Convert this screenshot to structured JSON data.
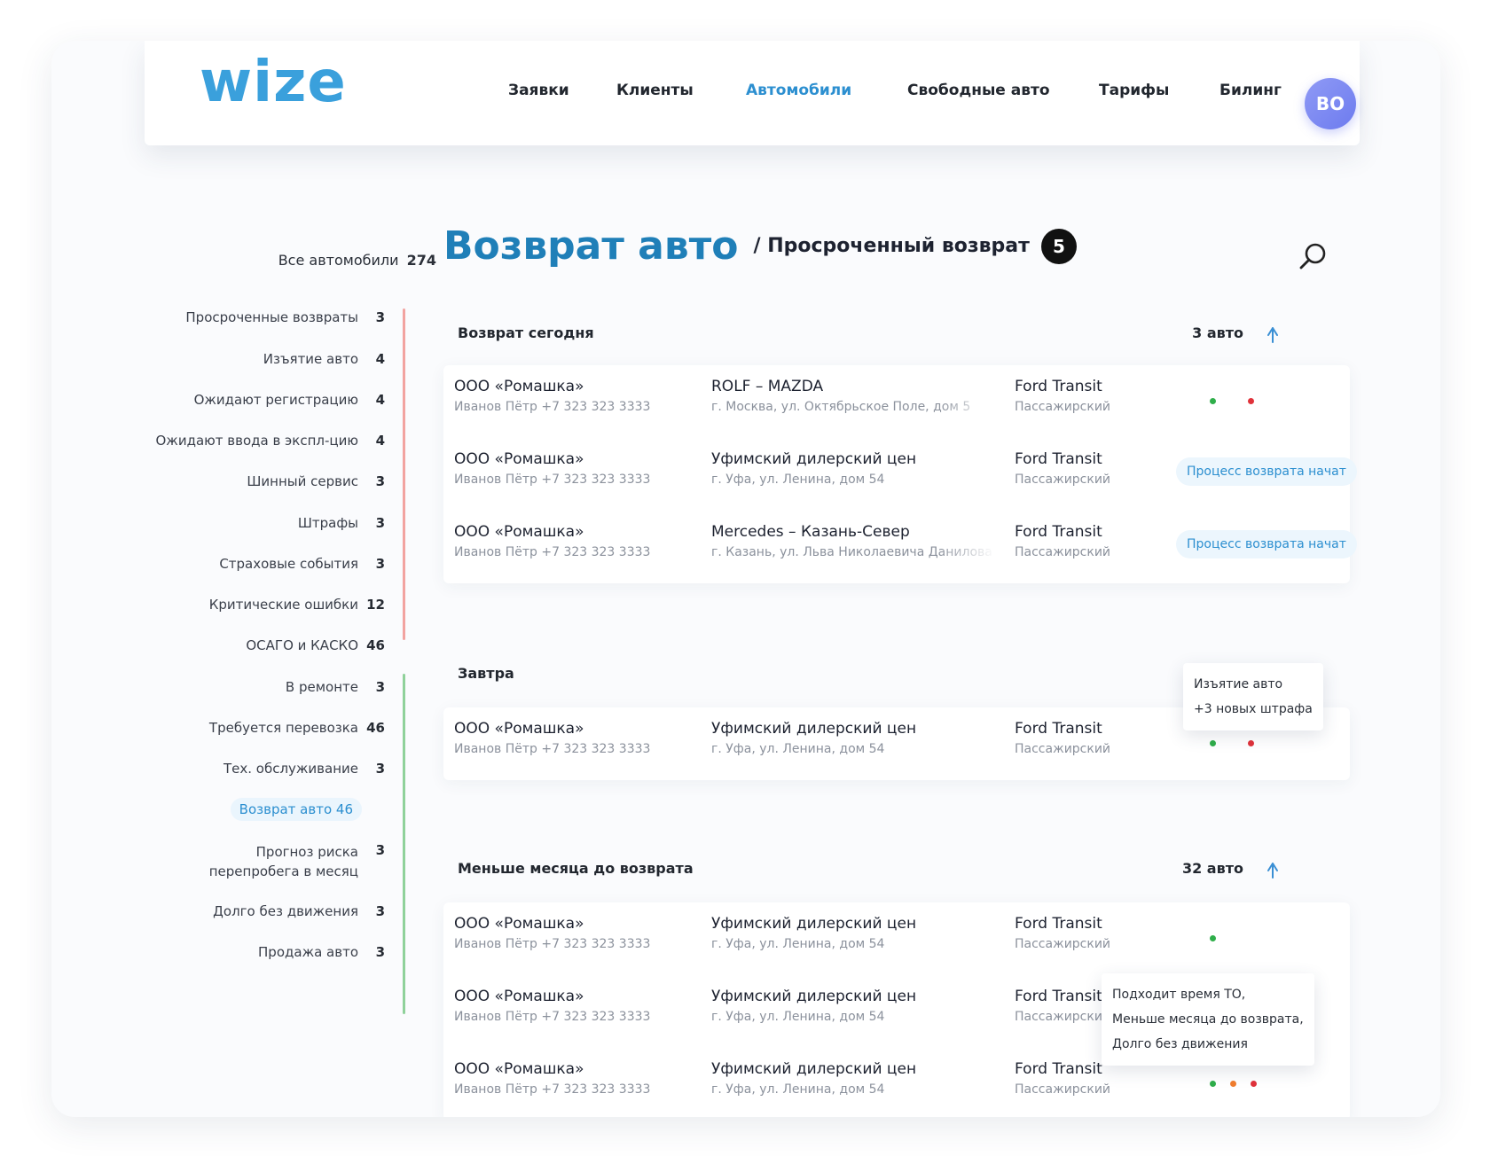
{
  "header": {
    "logo": "wize",
    "nav": [
      "Заявки",
      "Клиенты",
      "Автомобили",
      "Свободные авто",
      "Тарифы",
      "Билинг"
    ],
    "active_nav": "Автомобили",
    "avatar": "ВО"
  },
  "sidebar": {
    "all_label": "Все автомобили",
    "all_count": "274",
    "items": [
      {
        "label": "Просроченные возвраты",
        "count": "3"
      },
      {
        "label": "Изъятие авто",
        "count": "4"
      },
      {
        "label": "Ожидают регистрацию",
        "count": "4"
      },
      {
        "label": "Ожидают ввода в экспл-цию",
        "count": "4"
      },
      {
        "label": "Шинный сервис",
        "count": "3"
      },
      {
        "label": "Штрафы",
        "count": "3"
      },
      {
        "label": "Страховые события",
        "count": "3"
      },
      {
        "label": "Критические ошибки",
        "count": "12"
      },
      {
        "label": "ОСАГО и КАСКО",
        "count": "46"
      },
      {
        "label": "В ремонте",
        "count": "3"
      },
      {
        "label": "Требуется перевозка",
        "count": "46"
      },
      {
        "label": "Тех. обслуживание",
        "count": "3"
      },
      {
        "label": "Возврат авто",
        "count": "46"
      },
      {
        "label": "Прогноз риска перепробега в месяц",
        "count": "3"
      },
      {
        "label": "Долго без движения",
        "count": "3"
      },
      {
        "label": "Продажа авто",
        "count": "3"
      }
    ],
    "bar_colors": {
      "red": "#f2a3a0",
      "green": "#8fd19a"
    }
  },
  "page": {
    "title": "Возврат авто",
    "subtitle": "/ Просроченный возврат",
    "badge": "5"
  },
  "sections": [
    {
      "title": "Возврат сегодня",
      "count": "3 авто",
      "rows": [
        {
          "company": "ООО «Ромашка»",
          "contact": "Иванов Пётр +7 323 323 3333",
          "dealer": "ROLF – MAZDA",
          "address": "г. Москва, ул. Октябрьское Поле, дом 5",
          "car": "Ford Transit",
          "type": "Пассажирский",
          "status": ""
        },
        {
          "company": "ООО «Ромашка»",
          "contact": "Иванов Пётр +7 323 323 3333",
          "dealer": "Уфимский дилерский цен",
          "address": "г. Уфа, ул. Ленина, дом 54",
          "car": "Ford Transit",
          "type": "Пассажирский",
          "status": "Процесс возврата начат"
        },
        {
          "company": "ООО «Ромашка»",
          "contact": "Иванов Пётр +7 323 323 3333",
          "dealer": "Mercedes – Казань-Север",
          "address": "г. Казань, ул. Льва Николаевича Данилова",
          "car": "Ford Transit",
          "type": "Пассажирский",
          "status": "Процесс возврата начат"
        }
      ]
    },
    {
      "title": "Завтра",
      "rows": [
        {
          "company": "ООО «Ромашка»",
          "contact": "Иванов Пётр +7 323 323 3333",
          "dealer": "Уфимский дилерский цен",
          "address": "г. Уфа, ул. Ленина, дом 54",
          "car": "Ford Transit",
          "type": "Пассажирский"
        }
      ],
      "tooltip": [
        "Изъятие авто",
        "+3 новых штрафа"
      ]
    },
    {
      "title": "Меньше месяца до возврата",
      "count": "32 авто",
      "rows": [
        {
          "company": "ООО «Ромашка»",
          "contact": "Иванов Пётр +7 323 323 3333",
          "dealer": "Уфимский дилерский цен",
          "address": "г. Уфа, ул. Ленина, дом 54",
          "car": "Ford Transit",
          "type": "Пассажирский"
        },
        {
          "company": "ООО «Ромашка»",
          "contact": "Иванов Пётр +7 323 323 3333",
          "dealer": "Уфимский дилерский цен",
          "address": "г. Уфа, ул. Ленина, дом 54",
          "car": "Ford Transit",
          "type": "Пассажирский"
        },
        {
          "company": "ООО «Ромашка»",
          "contact": "Иванов Пётр +7 323 323 3333",
          "dealer": "Уфимский дилерский цен",
          "address": "г. Уфа, ул. Ленина, дом 54",
          "car": "Ford Transit",
          "type": "Пассажирский"
        }
      ],
      "tooltip": [
        "Подходит время ТО,",
        "Меньше месяца до возврата,",
        "Долго без движения"
      ]
    }
  ],
  "colors": {
    "accent": "#2c8fd0",
    "title": "#1f7fb8",
    "green": "#2fae4a",
    "red": "#e0323a",
    "orange": "#f07d2e"
  }
}
